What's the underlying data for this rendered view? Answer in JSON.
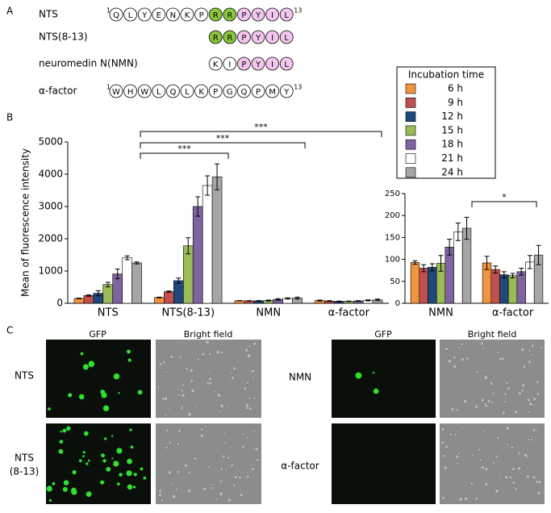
{
  "panel_letters": [
    "A",
    "B",
    "C"
  ],
  "panel_a": {
    "rows": [
      {
        "name": "NTS",
        "start": "1",
        "end": "13",
        "residues": [
          "Q",
          "L",
          "Y",
          "E",
          "N",
          "K",
          "P",
          "R",
          "R",
          "P",
          "Y",
          "I",
          "L"
        ],
        "colors": [
          "#fff",
          "#fff",
          "#fff",
          "#fff",
          "#fff",
          "#fff",
          "#fff",
          "#8cc63f",
          "#8cc63f",
          "#f4c6ef",
          "#f4c6ef",
          "#f4c6ef",
          "#f4c6ef"
        ]
      },
      {
        "name": "NTS(8-13)",
        "residues": [
          "R",
          "R",
          "P",
          "Y",
          "I",
          "L"
        ],
        "colors": [
          "#8cc63f",
          "#8cc63f",
          "#f4c6ef",
          "#f4c6ef",
          "#f4c6ef",
          "#f4c6ef"
        ]
      },
      {
        "name": "neuromedin N(NMN)",
        "residues": [
          "K",
          "I",
          "P",
          "Y",
          "I",
          "L"
        ],
        "colors": [
          "#fff",
          "#fff",
          "#f4c6ef",
          "#f4c6ef",
          "#f4c6ef",
          "#f4c6ef"
        ]
      },
      {
        "name": "α-factor",
        "start": "1",
        "end": "13",
        "residues": [
          "W",
          "H",
          "W",
          "L",
          "Q",
          "L",
          "K",
          "P",
          "G",
          "Q",
          "P",
          "M",
          "Y"
        ],
        "colors": [
          "#fff",
          "#fff",
          "#fff",
          "#fff",
          "#fff",
          "#fff",
          "#fff",
          "#fff",
          "#fff",
          "#fff",
          "#fff",
          "#fff",
          "#fff"
        ]
      }
    ]
  },
  "chart_data": [
    {
      "type": "bar",
      "y_label": "Mean of fluorescence intensity",
      "legend_title": "Incubation time",
      "categories": [
        "NTS",
        "NTS(8-13)",
        "NMN",
        "α-factor"
      ],
      "ylim": [
        0,
        5000
      ],
      "yticks": [
        0,
        1000,
        2000,
        3000,
        4000,
        5000
      ],
      "significance": [
        "***",
        "***",
        "***"
      ],
      "series": [
        {
          "name": "6 h",
          "color": "#f0953f",
          "values": [
            150,
            180,
            80,
            85
          ],
          "errors": [
            10,
            10,
            5,
            15
          ]
        },
        {
          "name": "9 h",
          "color": "#c0504d",
          "values": [
            240,
            360,
            75,
            70
          ],
          "errors": [
            20,
            20,
            5,
            10
          ]
        },
        {
          "name": "12 h",
          "color": "#1f497d",
          "values": [
            310,
            700,
            75,
            60
          ],
          "errors": [
            80,
            80,
            10,
            10
          ]
        },
        {
          "name": "15 h",
          "color": "#9bbb59",
          "values": [
            580,
            1780,
            85,
            60
          ],
          "errors": [
            70,
            250,
            15,
            8
          ]
        },
        {
          "name": "18 h",
          "color": "#8064a2",
          "values": [
            910,
            3000,
            120,
            70
          ],
          "errors": [
            150,
            300,
            25,
            10
          ]
        },
        {
          "name": "21 h",
          "color": "#ffffff",
          "values": [
            1410,
            3650,
            150,
            90
          ],
          "errors": [
            60,
            300,
            20,
            15
          ]
        },
        {
          "name": "24 h",
          "color": "#a6a6a6",
          "values": [
            1250,
            3920,
            160,
            105
          ],
          "errors": [
            30,
            400,
            30,
            25
          ]
        }
      ]
    },
    {
      "type": "bar",
      "categories": [
        "NMN",
        "α-factor"
      ],
      "ylim": [
        0,
        250
      ],
      "yticks": [
        0,
        50,
        100,
        150,
        200,
        250
      ],
      "significance": [
        "*"
      ],
      "series": [
        {
          "color": "#f0953f",
          "values": [
            93,
            92
          ],
          "errors": [
            4,
            15
          ]
        },
        {
          "color": "#c0504d",
          "values": [
            80,
            77
          ],
          "errors": [
            8,
            8
          ]
        },
        {
          "color": "#1f497d",
          "values": [
            82,
            65
          ],
          "errors": [
            8,
            7
          ]
        },
        {
          "color": "#9bbb59",
          "values": [
            91,
            63
          ],
          "errors": [
            18,
            5
          ]
        },
        {
          "color": "#8064a2",
          "values": [
            128,
            72
          ],
          "errors": [
            18,
            8
          ]
        },
        {
          "color": "#ffffff",
          "values": [
            163,
            94
          ],
          "errors": [
            20,
            15
          ]
        },
        {
          "color": "#a6a6a6",
          "values": [
            171,
            110
          ],
          "errors": [
            25,
            22
          ]
        }
      ]
    }
  ],
  "panel_c": {
    "column_headers": [
      "GFP",
      "Bright field",
      "GFP",
      "Bright field"
    ],
    "row_labels": [
      [
        "NTS"
      ],
      [
        "NTS",
        "(8-13)"
      ],
      [
        "NMN"
      ],
      [
        "α-factor"
      ]
    ]
  }
}
